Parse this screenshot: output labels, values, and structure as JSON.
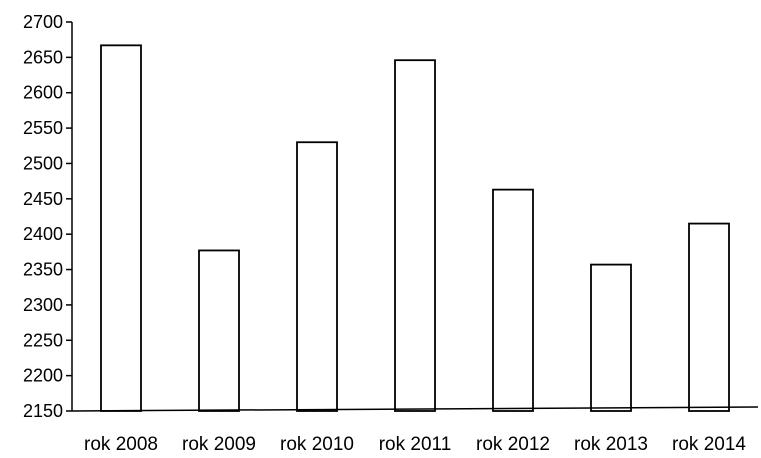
{
  "chart_data": {
    "type": "bar",
    "title": "",
    "xlabel": "",
    "ylabel": "",
    "categories": [
      "rok 2008",
      "rok 2009",
      "rok 2010",
      "rok 2011",
      "rok 2012",
      "rok 2013",
      "rok 2014"
    ],
    "values": [
      2667,
      2377,
      2530,
      2646,
      2463,
      2357,
      2415
    ],
    "ylim": [
      2150,
      2700
    ],
    "yticks": [
      "2150",
      "2200",
      "2250",
      "2300",
      "2350",
      "2400",
      "2450",
      "2500",
      "2550",
      "2600",
      "2650",
      "2700"
    ],
    "grid": false,
    "legend": false,
    "bar_fill": "#ffffff",
    "bar_stroke": "#000000"
  }
}
